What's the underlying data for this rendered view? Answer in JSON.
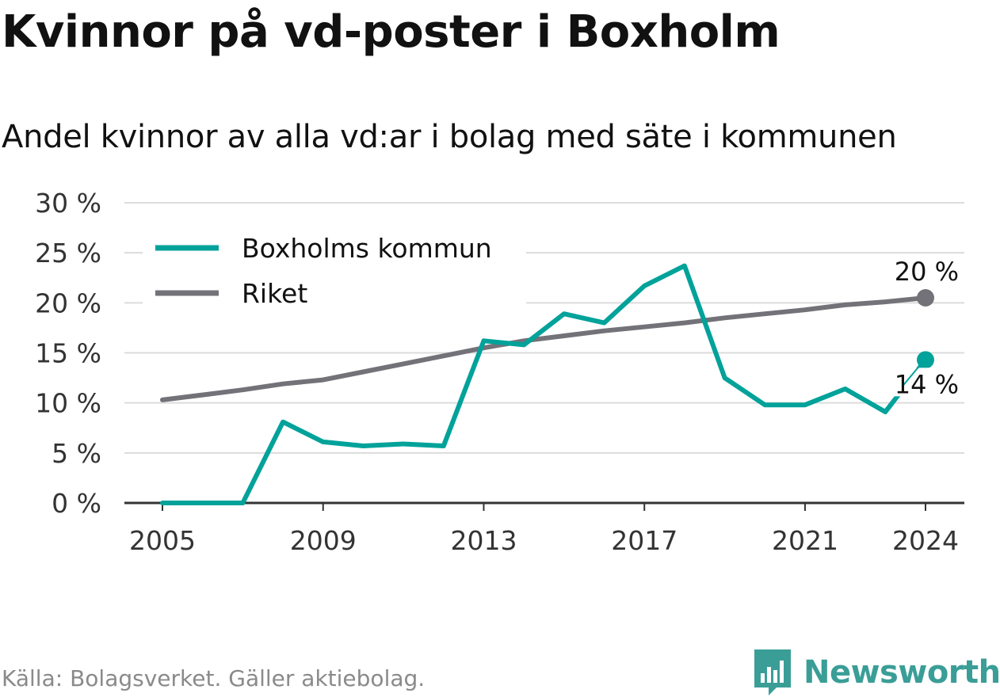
{
  "title": "Kvinnor på vd-poster i Boxholm",
  "subtitle": "Andel kvinnor av alla vd:ar i bolag med säte i kommunen",
  "source": "Källa: Bolagsverket. Gäller aktiebolag.",
  "brand": {
    "name": "Newsworthy",
    "color": "#3a9e97",
    "icon": "newsworthy-logo-icon"
  },
  "chart_data": {
    "type": "line",
    "x": [
      2005,
      2006,
      2007,
      2008,
      2009,
      2010,
      2011,
      2012,
      2013,
      2014,
      2015,
      2016,
      2017,
      2018,
      2019,
      2020,
      2021,
      2022,
      2023,
      2024
    ],
    "series": [
      {
        "name": "Boxholms kommun",
        "color": "#00a29a",
        "values": [
          0,
          0,
          0,
          8.1,
          6.1,
          5.7,
          5.9,
          5.7,
          16.2,
          15.8,
          18.9,
          18.0,
          21.7,
          23.7,
          12.5,
          9.8,
          9.8,
          11.4,
          9.1,
          14.3
        ],
        "end_label": "14 %"
      },
      {
        "name": "Riket",
        "color": "#737278",
        "values": [
          10.3,
          10.8,
          11.3,
          11.9,
          12.3,
          13.1,
          13.9,
          14.7,
          15.5,
          16.2,
          16.7,
          17.2,
          17.6,
          18.0,
          18.5,
          18.9,
          19.3,
          19.8,
          20.1,
          20.5
        ],
        "end_label": "20 %"
      }
    ],
    "xticks": [
      2005,
      2009,
      2013,
      2017,
      2021,
      2024
    ],
    "xtick_labels": [
      "2005",
      "2009",
      "2013",
      "2017",
      "2021",
      "2024"
    ],
    "yticks": [
      0,
      5,
      10,
      15,
      20,
      25,
      30
    ],
    "ytick_labels": [
      "0 %",
      "5 %",
      "10 %",
      "15 %",
      "20 %",
      "25 %",
      "30 %"
    ],
    "xlim": [
      2005,
      2024
    ],
    "ylim": [
      0,
      30
    ],
    "grid": true,
    "legend": "top-left",
    "xlabel": "",
    "ylabel": ""
  }
}
